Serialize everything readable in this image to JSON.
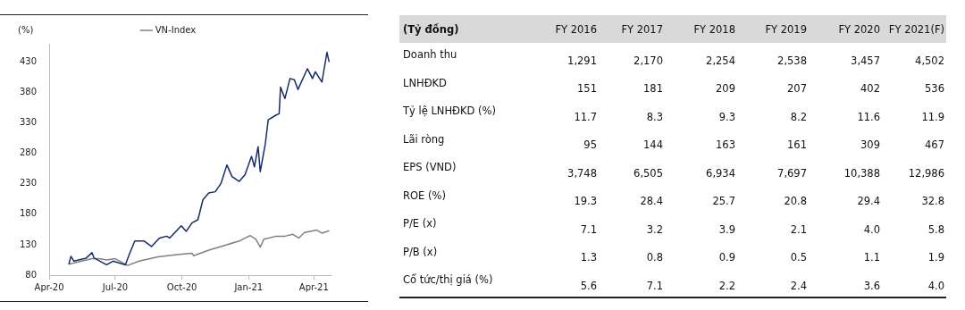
{
  "chart_data": [
    {
      "type": "line",
      "ylabel": "(%)",
      "xlim": [
        "2020-04-01",
        "2021-04-24"
      ],
      "ylim": [
        80,
        460
      ],
      "xticks": [
        {
          "value": "2020-04-01",
          "label": "Apr-20"
        },
        {
          "value": "2020-07-01",
          "label": "Jul-20"
        },
        {
          "value": "2020-10-01",
          "label": "Oct-20"
        },
        {
          "value": "2021-01-01",
          "label": "Jan-21"
        },
        {
          "value": "2021-04-01",
          "label": "Apr-21"
        }
      ],
      "yticks": [
        80,
        130,
        180,
        230,
        280,
        330,
        380,
        430
      ],
      "grid": false,
      "legend": "top",
      "marker": "none",
      "line_style": "solid",
      "series": [
        {
          "color": "#172d6b",
          "x": [
            "2020-04-28",
            "2020-05-01",
            "2020-05-05",
            "2020-05-22",
            "2020-05-30",
            "2020-06-02",
            "2020-06-19",
            "2020-06-28",
            "2020-07-15",
            "2020-07-21",
            "2020-07-28",
            "2020-08-10",
            "2020-08-20",
            "2020-08-31",
            "2020-09-10",
            "2020-09-14",
            "2020-09-30",
            "2020-10-07",
            "2020-10-15",
            "2020-10-23",
            "2020-10-30",
            "2020-11-07",
            "2020-11-16",
            "2020-11-24",
            "2020-12-02",
            "2020-12-09",
            "2020-12-19",
            "2020-12-27",
            "2021-01-05",
            "2021-01-09",
            "2021-01-14",
            "2021-01-17",
            "2021-01-24",
            "2021-01-28",
            "2021-02-08",
            "2021-02-12",
            "2021-02-14",
            "2021-02-20",
            "2021-02-27",
            "2021-03-05",
            "2021-03-10",
            "2021-03-23",
            "2021-03-30",
            "2021-04-03",
            "2021-04-12",
            "2021-04-19",
            "2021-04-22"
          ],
          "values": [
            98,
            111,
            103,
            108,
            117,
            108,
            97,
            103,
            97,
            116,
            136,
            136,
            127,
            141,
            144,
            141,
            161,
            152,
            166,
            171,
            204,
            215,
            217,
            231,
            261,
            242,
            234,
            245,
            275,
            258,
            291,
            250,
            296,
            335,
            343,
            345,
            389,
            370,
            403,
            401,
            385,
            419,
            403,
            414,
            397,
            446,
            430
          ]
        },
        {
          "name": "VN-Index",
          "color": "#808080",
          "x": [
            "2020-04-28",
            "2020-05-30",
            "2020-06-08",
            "2020-06-19",
            "2020-07-01",
            "2020-07-18",
            "2020-08-03",
            "2020-08-29",
            "2020-09-27",
            "2020-10-15",
            "2020-10-17",
            "2020-11-07",
            "2020-12-02",
            "2020-12-19",
            "2021-01-03",
            "2021-01-11",
            "2021-01-17",
            "2021-01-22",
            "2021-02-08",
            "2021-02-20",
            "2021-03-03",
            "2021-03-11",
            "2021-03-19",
            "2021-04-05",
            "2021-04-12",
            "2021-04-22"
          ],
          "values": [
            98,
            107,
            107,
            105,
            107,
            96,
            103,
            110,
            114,
            116,
            112,
            121,
            130,
            136,
            145,
            139,
            126,
            139,
            144,
            144,
            147,
            141,
            150,
            154,
            149,
            153
          ]
        }
      ]
    },
    {
      "type": "heatmap",
      "title": "(Tỷ đồng)",
      "categories": [
        "FY 2016",
        "FY 2017",
        "FY 2018",
        "FY 2019",
        "FY 2020",
        "FY 2021(F)"
      ],
      "y_categories": [
        "Doanh thu",
        "LNHĐKD",
        "Tỷ lệ LNHĐKD (%)",
        "Lãi ròng",
        "EPS (VND)",
        "ROE (%)",
        "P/E (x)",
        "P/B (x)",
        "Cổ tức/thị giá (%)"
      ],
      "cells": [
        [
          1291,
          2170,
          2254,
          2538,
          3457,
          4502
        ],
        [
          151,
          181,
          209,
          207,
          402,
          536
        ],
        [
          11.7,
          8.3,
          9.3,
          8.2,
          11.6,
          11.9
        ],
        [
          95,
          144,
          163,
          161,
          309,
          467
        ],
        [
          3748,
          6505,
          6934,
          7697,
          10388,
          12986
        ],
        [
          19.3,
          28.4,
          25.7,
          20.8,
          29.4,
          32.8
        ],
        [
          7.1,
          3.2,
          3.9,
          2.1,
          4.0,
          5.8
        ],
        [
          1.3,
          0.8,
          0.9,
          0.5,
          1.1,
          1.9
        ],
        [
          5.6,
          7.1,
          2.2,
          2.4,
          3.6,
          4.0
        ]
      ],
      "cell_labels": [
        [
          "1,291",
          "2,170",
          "2,254",
          "2,538",
          "3,457",
          "4,502"
        ],
        [
          "151",
          "181",
          "209",
          "207",
          "402",
          "536"
        ],
        [
          "11.7",
          "8.3",
          "9.3",
          "8.2",
          "11.6",
          "11.9"
        ],
        [
          "95",
          "144",
          "163",
          "161",
          "309",
          "467"
        ],
        [
          "3,748",
          "6,505",
          "6,934",
          "7,697",
          "10,388",
          "12,986"
        ],
        [
          "19.3",
          "28.4",
          "25.7",
          "20.8",
          "29.4",
          "32.8"
        ],
        [
          "7.1",
          "3.2",
          "3.9",
          "2.1",
          "4.0",
          "5.8"
        ],
        [
          "1.3",
          "0.8",
          "0.9",
          "0.5",
          "1.1",
          "1.9"
        ],
        [
          "5.6",
          "7.1",
          "2.2",
          "2.4",
          "3.6",
          "4.0"
        ]
      ]
    }
  ]
}
